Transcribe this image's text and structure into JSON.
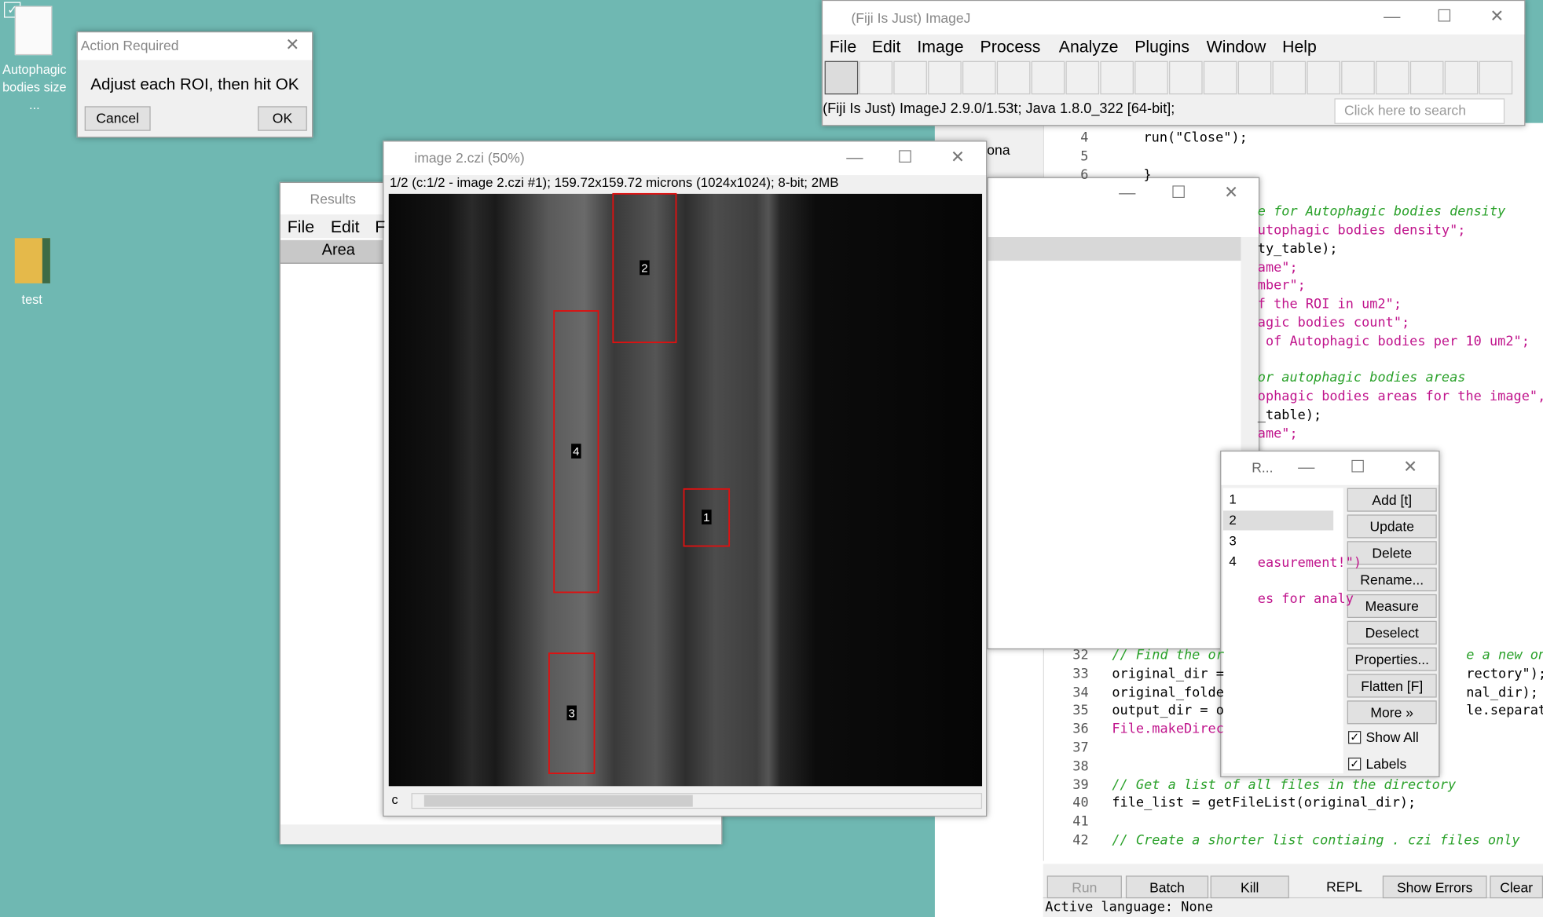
{
  "desktop": {
    "icons": [
      "Autophagic bodies size ...",
      "test"
    ]
  },
  "action_dialog": {
    "title": "Action Required",
    "message": "Adjust each ROI, then hit OK",
    "buttons": [
      "Cancel",
      "OK"
    ]
  },
  "imagej": {
    "title": "(Fiji Is Just) ImageJ",
    "menu": [
      "File",
      "Edit",
      "Image",
      "Process",
      "Analyze",
      "Plugins",
      "Window",
      "Help"
    ],
    "status": "(Fiji Is Just) ImageJ 2.9.0/1.53t; Java 1.8.0_322 [64-bit];",
    "search": "Click here to search"
  },
  "image_window": {
    "title": "image 2.czi (50%)",
    "info": "1/2 (c:1/2 - image 2.czi #1); 159.72x159.72 microns (1024x1024); 8-bit; 2MB",
    "channel": "c",
    "roi_labels": [
      "1",
      "2",
      "3",
      "4"
    ]
  },
  "results": {
    "title": "Results",
    "menu": [
      "File",
      "Edit",
      "F"
    ],
    "column": "Area"
  },
  "roi_manager": {
    "title": "R...",
    "items": [
      "1",
      "2",
      "3",
      "4"
    ],
    "buttons": [
      "Add [t]",
      "Update",
      "Delete",
      "Rename...",
      "Measure",
      "Deselect",
      "Properties...",
      "Flatten [F]",
      "More »"
    ],
    "checkboxes": [
      "Show All",
      "Labels"
    ]
  },
  "editor": {
    "hidden_window_text": "ona",
    "top_lines": [
      {
        "num": "4",
        "text": "run(\"Close\");"
      },
      {
        "num": "5"
      },
      {
        "num": "6",
        "text": "}"
      }
    ],
    "fragments": [
      {
        "text": "e for Autophagic bodies density",
        "kind": "comment"
      },
      {
        "text": "utophagic bodies density\";",
        "kind": "string"
      },
      {
        "text": "ty_table);",
        "kind": "code"
      },
      {
        "text": "ame\";",
        "kind": "string"
      },
      {
        "text": "mber\";",
        "kind": "string"
      },
      {
        "text": "f the ROI in um2\";",
        "kind": "string"
      },
      {
        "text": "agic bodies count\";",
        "kind": "string"
      },
      {
        "text": " of Autophagic bodies per 10 um2\";",
        "kind": "string"
      },
      {
        "text": "or autophagic bodies areas",
        "kind": "comment"
      },
      {
        "text": "ophagic bodies areas for the image\",",
        "kind": "string"
      },
      {
        "text": "_table);",
        "kind": "code"
      },
      {
        "text": "ame\";",
        "kind": "string"
      },
      {
        "text": "easurement!\")",
        "kind": "string"
      },
      {
        "text": "es for analy",
        "kind": "string"
      }
    ],
    "lines": [
      {
        "num": "32",
        "text": "// Find the or",
        "right": "e a new one fo",
        "kind": "comment"
      },
      {
        "num": "33",
        "text": "original_dir =",
        "right": "rectory\");",
        "kind": "code"
      },
      {
        "num": "34",
        "text": "original_folde",
        "right": "nal_dir);",
        "kind": "code"
      },
      {
        "num": "35",
        "text": "output_dir = o",
        "right": "le.separator",
        "kind": "code"
      },
      {
        "num": "36",
        "text": "File.makeDirec",
        "kind": "string"
      },
      {
        "num": "37"
      },
      {
        "num": "38"
      },
      {
        "num": "39",
        "text": "// Get a list of all files in the directory",
        "kind": "comment"
      },
      {
        "num": "40",
        "text": "file_list = getFileList(original_dir);",
        "kind": "code"
      },
      {
        "num": "41"
      },
      {
        "num": "42",
        "text": "// Create a shorter list contiaing . czi files only",
        "kind": "comment"
      }
    ],
    "buttons": [
      "Run",
      "Batch",
      "Kill",
      "REPL",
      "Show Errors",
      "Clear"
    ],
    "status": "Active language: None"
  }
}
